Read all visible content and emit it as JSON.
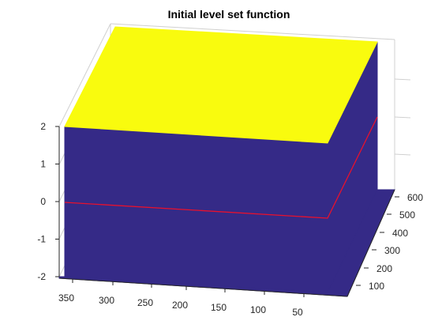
{
  "chart_data": {
    "type": "surface3d",
    "title": "Initial level set function",
    "xlabel": "",
    "ylabel": "",
    "zlabel": "",
    "x_ticks": [
      "350",
      "300",
      "250",
      "200",
      "150",
      "100",
      "50"
    ],
    "y_ticks": [
      "100",
      "200",
      "300",
      "400",
      "500",
      "600"
    ],
    "z_ticks": [
      "2",
      "1",
      "0",
      "-1",
      "-2"
    ],
    "zlim": [
      -2,
      2
    ],
    "surface_levels": {
      "top": 2,
      "bottom": -2
    },
    "zero_contour_level": 0,
    "grid": true,
    "colors": {
      "top_face": "#f9fb0e",
      "side_face": "#352a87",
      "contour": "#e8112d",
      "box_lines": "#d0d0d0",
      "axis": "#262626"
    }
  }
}
